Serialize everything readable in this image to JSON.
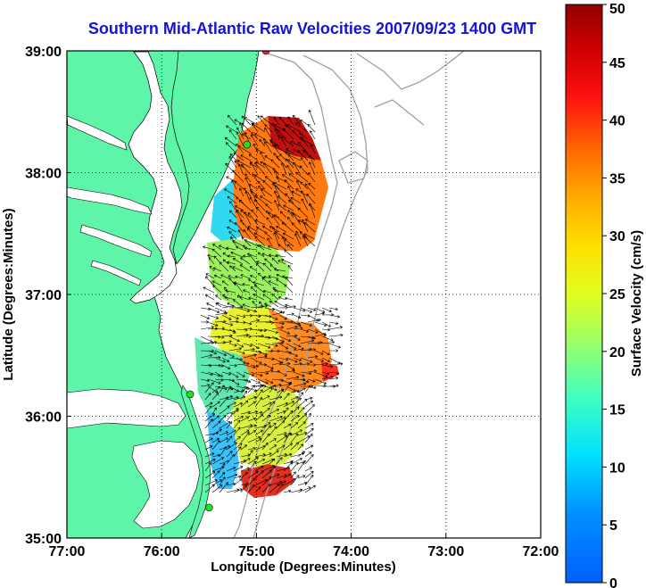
{
  "title": "Southern Mid-Atlantic Raw Velocities 2007/09/23 1400 GMT",
  "map": {
    "x_label": "Longitude (Degrees:Minutes)",
    "y_label": "Latitude (Degrees:Minutes)",
    "lon_range": [
      -77.0,
      -72.0
    ],
    "lat_range": [
      35.0,
      39.0
    ],
    "x_ticks": [
      {
        "value": -77,
        "label": "77:00"
      },
      {
        "value": -76,
        "label": "76:00"
      },
      {
        "value": -75,
        "label": "75:00"
      },
      {
        "value": -74,
        "label": "74:00"
      },
      {
        "value": -73,
        "label": "73:00"
      },
      {
        "value": -72,
        "label": "72:00"
      }
    ],
    "y_ticks": [
      {
        "value": 35,
        "label": "35:00"
      },
      {
        "value": 36,
        "label": "36:00"
      },
      {
        "value": 37,
        "label": "37:00"
      },
      {
        "value": 38,
        "label": "38:00"
      },
      {
        "value": 39,
        "label": "39:00"
      }
    ],
    "grid": "dotted",
    "land_color": "#5ef5a8",
    "water_color": "#ffffff",
    "bathymetry_color": "#a0a0a0",
    "stations": [
      {
        "lon": -74.9,
        "lat": 39.0,
        "color": "#ff2020"
      },
      {
        "lon": -75.1,
        "lat": 38.23,
        "color": "#20e020"
      },
      {
        "lon": -75.7,
        "lat": 36.18,
        "color": "#20e020"
      },
      {
        "lon": -75.5,
        "lat": 35.25,
        "color": "#20e020"
      }
    ]
  },
  "colorbar": {
    "label": "Surface Velocity (cm/s)",
    "min": 0,
    "max": 50,
    "ticks": [
      {
        "value": 0,
        "label": "0"
      },
      {
        "value": 5,
        "label": "5"
      },
      {
        "value": 10,
        "label": "10"
      },
      {
        "value": 15,
        "label": "15"
      },
      {
        "value": 20,
        "label": "20"
      },
      {
        "value": 25,
        "label": "25"
      },
      {
        "value": 30,
        "label": "30"
      },
      {
        "value": 35,
        "label": "35"
      },
      {
        "value": 40,
        "label": "40"
      },
      {
        "value": 45,
        "label": "45"
      },
      {
        "value": 50,
        "label": "50"
      }
    ]
  }
}
